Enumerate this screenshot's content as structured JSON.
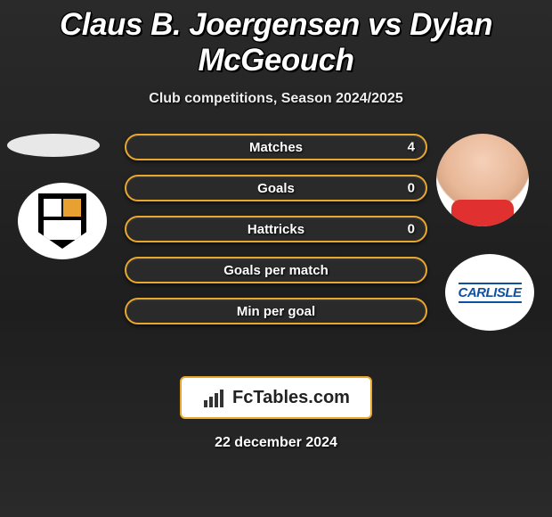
{
  "title": "Claus B. Joergensen vs Dylan McGeouch",
  "subtitle": "Club competitions, Season 2024/2025",
  "date": "22 december 2024",
  "footer_brand": "FcTables.com",
  "colors": {
    "p1_accent": "#6fb04a",
    "p2_accent": "#e8a830",
    "bar_bg": "#2a2a2a"
  },
  "player1": {
    "name": "Claus B. Joergensen",
    "club": "Port Vale"
  },
  "player2": {
    "name": "Dylan McGeouch",
    "club": "Carlisle",
    "club_label": "CARLISLE"
  },
  "stats": [
    {
      "label": "Matches",
      "p1": "",
      "p2": "4",
      "p1_fill": 0,
      "p2_fill": 100
    },
    {
      "label": "Goals",
      "p1": "",
      "p2": "0",
      "p1_fill": 0,
      "p2_fill": 0
    },
    {
      "label": "Hattricks",
      "p1": "",
      "p2": "0",
      "p1_fill": 0,
      "p2_fill": 0
    },
    {
      "label": "Goals per match",
      "p1": "",
      "p2": "",
      "p1_fill": 0,
      "p2_fill": 0
    },
    {
      "label": "Min per goal",
      "p1": "",
      "p2": "",
      "p1_fill": 0,
      "p2_fill": 0
    }
  ]
}
